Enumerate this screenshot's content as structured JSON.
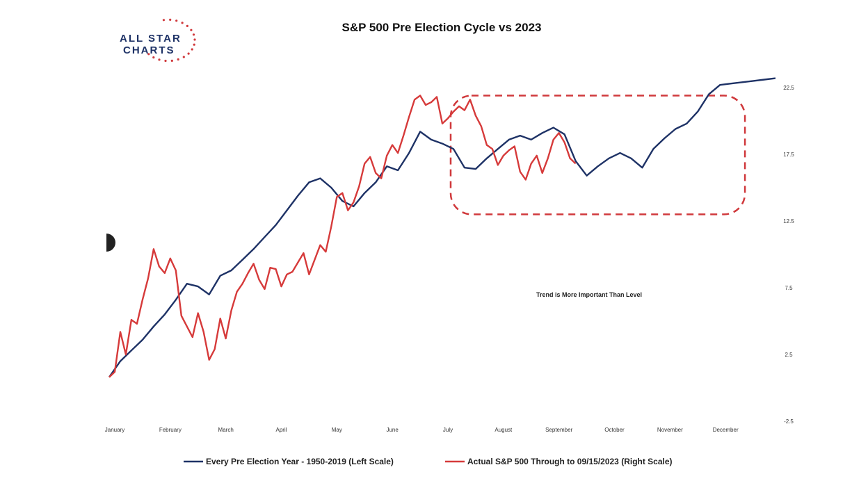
{
  "logo": {
    "line1": "ALL STAR",
    "line2": "CHARTS",
    "color_navy": "#1e3266",
    "color_red": "#d0393c"
  },
  "chart_data": {
    "type": "line",
    "title": "S&P 500 Pre Election Cycle vs 2023",
    "x_axis": {
      "tick_labels": [
        "January",
        "February",
        "March",
        "April",
        "May",
        "June",
        "July",
        "August",
        "September",
        "October",
        "November",
        "December"
      ]
    },
    "y_axis_right": {
      "range": [
        -2.5,
        22.5
      ],
      "tick_labels": [
        "-2.5",
        "2.5",
        "7.5",
        "12.5",
        "17.5",
        "22.5"
      ],
      "tick_values": [
        -2.5,
        2.5,
        7.5,
        12.5,
        17.5,
        22.5
      ]
    },
    "annotation": "Trend is More Important Than Level",
    "highlight_box": {
      "x_range": [
        6.15,
        11.45
      ],
      "y_range": [
        13.0,
        21.9
      ],
      "style": "dashed",
      "color": "#d0393c"
    },
    "grid": false,
    "legend_position": "bottom",
    "series": [
      {
        "name": "Every Pre Election Year - 1950-2019 (Left Scale)",
        "color": "#1e3266",
        "x": [
          0,
          0.2,
          0.4,
          0.6,
          0.8,
          1.0,
          1.2,
          1.4,
          1.6,
          1.8,
          2.0,
          2.2,
          2.4,
          2.6,
          2.8,
          3.0,
          3.2,
          3.4,
          3.6,
          3.8,
          4.0,
          4.2,
          4.4,
          4.6,
          4.8,
          5.0,
          5.2,
          5.4,
          5.6,
          5.8,
          6.0,
          6.2,
          6.4,
          6.6,
          6.8,
          7.0,
          7.2,
          7.4,
          7.6,
          7.8,
          8.0,
          8.2,
          8.4,
          8.6,
          8.8,
          9.0,
          9.2,
          9.4,
          9.6,
          9.8,
          10.0,
          10.2,
          10.4,
          10.6,
          10.8,
          11.0,
          11.2,
          11.4,
          11.6,
          11.8,
          12.0
        ],
        "values": [
          0.8,
          2.0,
          2.8,
          3.6,
          4.6,
          5.5,
          6.6,
          7.8,
          7.6,
          7.0,
          8.4,
          8.8,
          9.6,
          10.4,
          11.3,
          12.2,
          13.3,
          14.4,
          15.4,
          15.7,
          15.0,
          14.0,
          13.6,
          14.6,
          15.4,
          16.6,
          16.3,
          17.6,
          19.2,
          18.6,
          18.3,
          17.9,
          16.5,
          16.4,
          17.2,
          17.9,
          18.6,
          18.9,
          18.6,
          19.1,
          19.5,
          19.0,
          17.0,
          15.9,
          16.6,
          17.2,
          17.6,
          17.2,
          16.5,
          17.9,
          18.7,
          19.4,
          19.8,
          20.7,
          22.0,
          22.7,
          22.8,
          22.9,
          23.0,
          23.1,
          23.2
        ]
      },
      {
        "name": "Actual S&P 500 Through to 09/15/2023 (Right Scale)",
        "color": "#d63a3a",
        "x": [
          0,
          0.1,
          0.2,
          0.3,
          0.4,
          0.5,
          0.6,
          0.7,
          0.8,
          0.9,
          1.0,
          1.1,
          1.2,
          1.3,
          1.4,
          1.5,
          1.6,
          1.7,
          1.8,
          1.9,
          2.0,
          2.1,
          2.2,
          2.3,
          2.4,
          2.5,
          2.6,
          2.7,
          2.8,
          2.9,
          3.0,
          3.1,
          3.2,
          3.3,
          3.4,
          3.5,
          3.6,
          3.7,
          3.8,
          3.9,
          4.0,
          4.1,
          4.2,
          4.3,
          4.4,
          4.5,
          4.6,
          4.7,
          4.8,
          4.9,
          5.0,
          5.1,
          5.2,
          5.3,
          5.4,
          5.5,
          5.6,
          5.7,
          5.8,
          5.9,
          6.0,
          6.1,
          6.2,
          6.3,
          6.4,
          6.5,
          6.6,
          6.7,
          6.8,
          6.9,
          7.0,
          7.1,
          7.2,
          7.3,
          7.4,
          7.5,
          7.6,
          7.7,
          7.8,
          7.9,
          8.0,
          8.1,
          8.2,
          8.3,
          8.4
        ],
        "values": [
          0.8,
          1.2,
          4.2,
          2.5,
          5.1,
          4.8,
          6.6,
          8.2,
          10.4,
          9.1,
          8.6,
          9.7,
          8.8,
          5.4,
          4.6,
          3.8,
          5.6,
          4.2,
          2.1,
          2.9,
          5.2,
          3.7,
          5.8,
          7.2,
          7.8,
          8.6,
          9.3,
          8.1,
          7.4,
          9.0,
          8.9,
          7.6,
          8.5,
          8.7,
          9.4,
          10.1,
          8.5,
          9.6,
          10.7,
          10.2,
          12.1,
          14.3,
          14.6,
          13.3,
          13.9,
          15.1,
          16.8,
          17.3,
          16.1,
          15.7,
          17.4,
          18.2,
          17.6,
          18.9,
          20.3,
          21.6,
          21.9,
          21.2,
          21.4,
          21.8,
          19.8,
          20.2,
          20.7,
          21.1,
          20.8,
          21.6,
          20.4,
          19.6,
          18.2,
          17.9,
          16.7,
          17.4,
          17.8,
          18.1,
          16.2,
          15.6,
          16.8,
          17.4,
          16.1,
          17.2,
          18.6,
          19.1,
          18.4,
          17.2,
          16.8
        ]
      }
    ]
  }
}
